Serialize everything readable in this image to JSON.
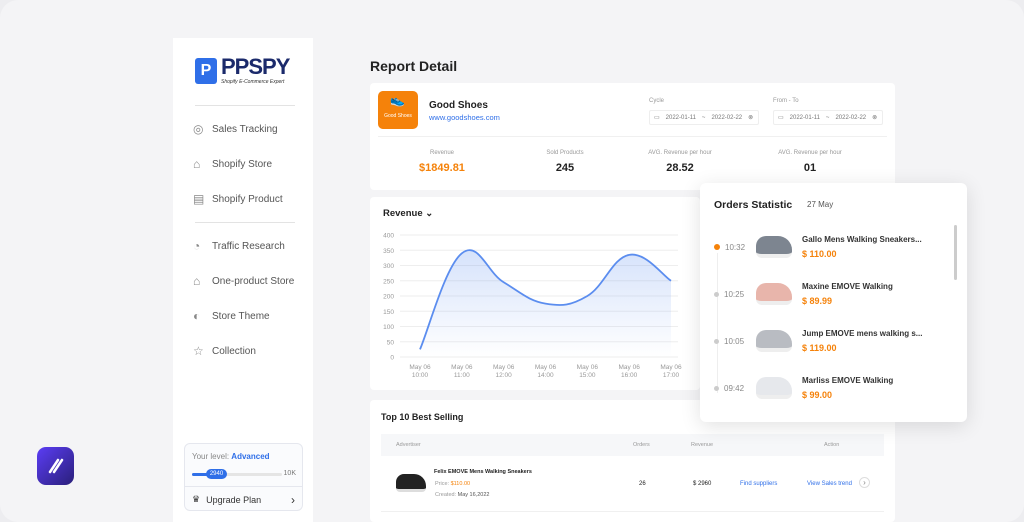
{
  "sidebar": {
    "brand": "PPSPY",
    "tagline": "Shopify E-Commerce Expert",
    "items": [
      {
        "label": "Sales Tracking",
        "icon": "target-icon"
      },
      {
        "label": "Shopify Store",
        "icon": "store-icon"
      },
      {
        "label": "Shopify Product",
        "icon": "product-icon"
      },
      {
        "label": "Traffic Research",
        "icon": "traffic-icon"
      },
      {
        "label": "One-product Store",
        "icon": "home-icon"
      },
      {
        "label": "Store Theme",
        "icon": "palette-icon"
      },
      {
        "label": "Collection",
        "icon": "star-icon"
      }
    ],
    "level": {
      "label": "Your level:",
      "value": "Advanced",
      "progress": "2940",
      "max": "10K",
      "progress_fraction": 0.294,
      "upgrade": "Upgrade Plan"
    }
  },
  "page": {
    "title": "Report Detail"
  },
  "store": {
    "logo_text": "Good Shoes",
    "name": "Good Shoes",
    "url": "www.goodshoes.com",
    "cycle": {
      "label": "Cycle",
      "from": "2022-01-11",
      "to": "2022-02-22"
    },
    "from_to": {
      "label": "From - To",
      "from": "2022-01-11",
      "to": "2022-02-22"
    },
    "stats": [
      {
        "label": "Revenue",
        "value": "$1849.81"
      },
      {
        "label": "Sold Products",
        "value": "245"
      },
      {
        "label": "AVG. Revenue per hour",
        "value": "28.52"
      },
      {
        "label": "AVG. Revenue per hour",
        "value": "01"
      }
    ]
  },
  "chart_data": {
    "type": "area",
    "title": "Revenue",
    "categories": [
      "May 06\n10:00",
      "May 06\n11:00",
      "May 06\n12:00",
      "May 06\n14:00",
      "May 06\n15:00",
      "May 06\n16:00",
      "May 06\n17:00"
    ],
    "cat_lines": [
      [
        "May 06",
        "10:00"
      ],
      [
        "May 06",
        "11:00"
      ],
      [
        "May 06",
        "12:00"
      ],
      [
        "May 06",
        "14:00"
      ],
      [
        "May 06",
        "15:00"
      ],
      [
        "May 06",
        "16:00"
      ],
      [
        "May 06",
        "17:00"
      ]
    ],
    "values": [
      25,
      340,
      245,
      175,
      200,
      335,
      250
    ],
    "ylim": [
      0,
      400
    ],
    "yticks": [
      0,
      50,
      100,
      150,
      200,
      250,
      300,
      350,
      400
    ],
    "grid": true,
    "color": "#5b8def"
  },
  "orders": {
    "title": "Orders Statistic",
    "date": "27 May",
    "items": [
      {
        "time": "10:32",
        "name": "Gallo Mens Walking Sneakers...",
        "price": "$ 110.00",
        "active": true,
        "shoe": "#7d8590"
      },
      {
        "time": "10:25",
        "name": "Maxine EMOVE Walking",
        "price": "$ 89.99",
        "active": false,
        "shoe": "#e8b5ab"
      },
      {
        "time": "10:05",
        "name": "Jump EMOVE mens walking s...",
        "price": "$ 119.00",
        "active": false,
        "shoe": "#b9bcc2"
      },
      {
        "time": "09:42",
        "name": "Marliss EMOVE Walking",
        "price": "$ 99.00",
        "active": false,
        "shoe": "#e6e8ec"
      }
    ]
  },
  "best": {
    "title": "Top 10 Best Selling",
    "headers": {
      "advertiser": "Advertiser",
      "orders": "Orders",
      "revenue": "Revenue",
      "action": "Action"
    },
    "rows": [
      {
        "name": "Felix EMOVE Mens Walking Sneakers",
        "price_label": "Price:",
        "price": "$110.00",
        "created_label": "Created:",
        "created": "May 16,2022",
        "orders": "26",
        "revenue": "$ 2960",
        "find": "Find suppliers",
        "trend": "View Sales trend"
      }
    ]
  },
  "colors": {
    "accent": "#f5820a",
    "brand": "#2f6fe8"
  }
}
